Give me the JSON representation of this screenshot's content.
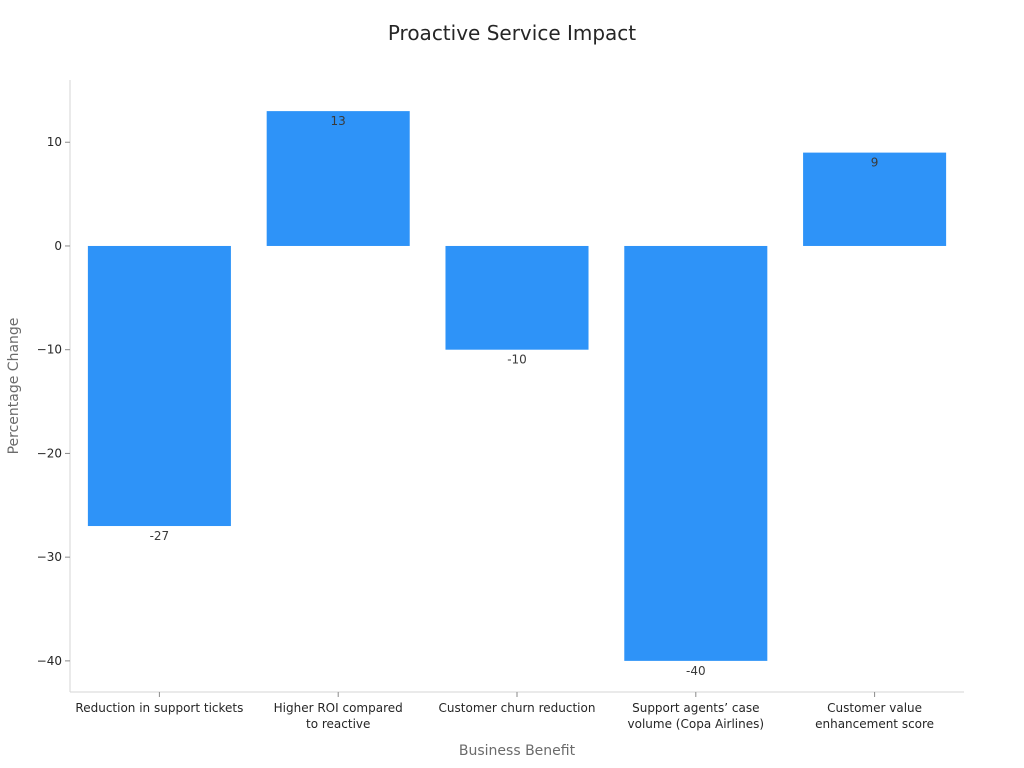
{
  "chart_data": {
    "type": "bar",
    "title": "Proactive Service Impact",
    "xlabel": "Business Benefit",
    "ylabel": "Percentage Change",
    "categories": [
      [
        "Reduction in support tickets"
      ],
      [
        "Higher ROI compared",
        "to reactive"
      ],
      [
        "Customer churn reduction"
      ],
      [
        "Support agents’ case",
        "volume (Copa Airlines)"
      ],
      [
        "Customer value",
        "enhancement score"
      ]
    ],
    "values": [
      -27,
      13,
      -10,
      -40,
      9
    ],
    "data_labels": [
      "-27",
      "13",
      "-10",
      "-40",
      "9"
    ],
    "yticks": [
      10,
      0,
      -10,
      -20,
      -30,
      -40
    ],
    "ytick_labels": [
      "10",
      "0",
      "−10",
      "−20",
      "−30",
      "−40"
    ],
    "ylim": [
      -43,
      16
    ],
    "grid": false,
    "bar_color": "#2e93f8"
  }
}
